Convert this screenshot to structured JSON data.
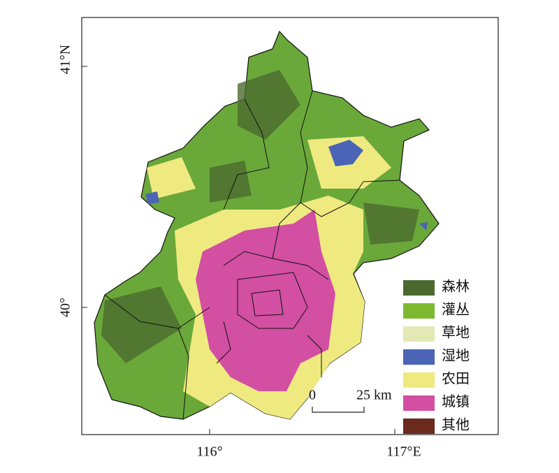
{
  "axes": {
    "x_ticks": [
      "116°",
      "117°E"
    ],
    "y_ticks": [
      "41°N",
      "40°"
    ]
  },
  "legend": [
    {
      "label": "森林",
      "color": "#4b6a30"
    },
    {
      "label": "灌丛",
      "color": "#7dba2f"
    },
    {
      "label": "草地",
      "color": "#e2e9b4"
    },
    {
      "label": "湿地",
      "color": "#4b64b5"
    },
    {
      "label": "农田",
      "color": "#efea80"
    },
    {
      "label": "城镇",
      "color": "#d24fa2"
    },
    {
      "label": "其他",
      "color": "#6b2a1e"
    }
  ],
  "scale_bar": {
    "start": "0",
    "end": "25 km"
  }
}
